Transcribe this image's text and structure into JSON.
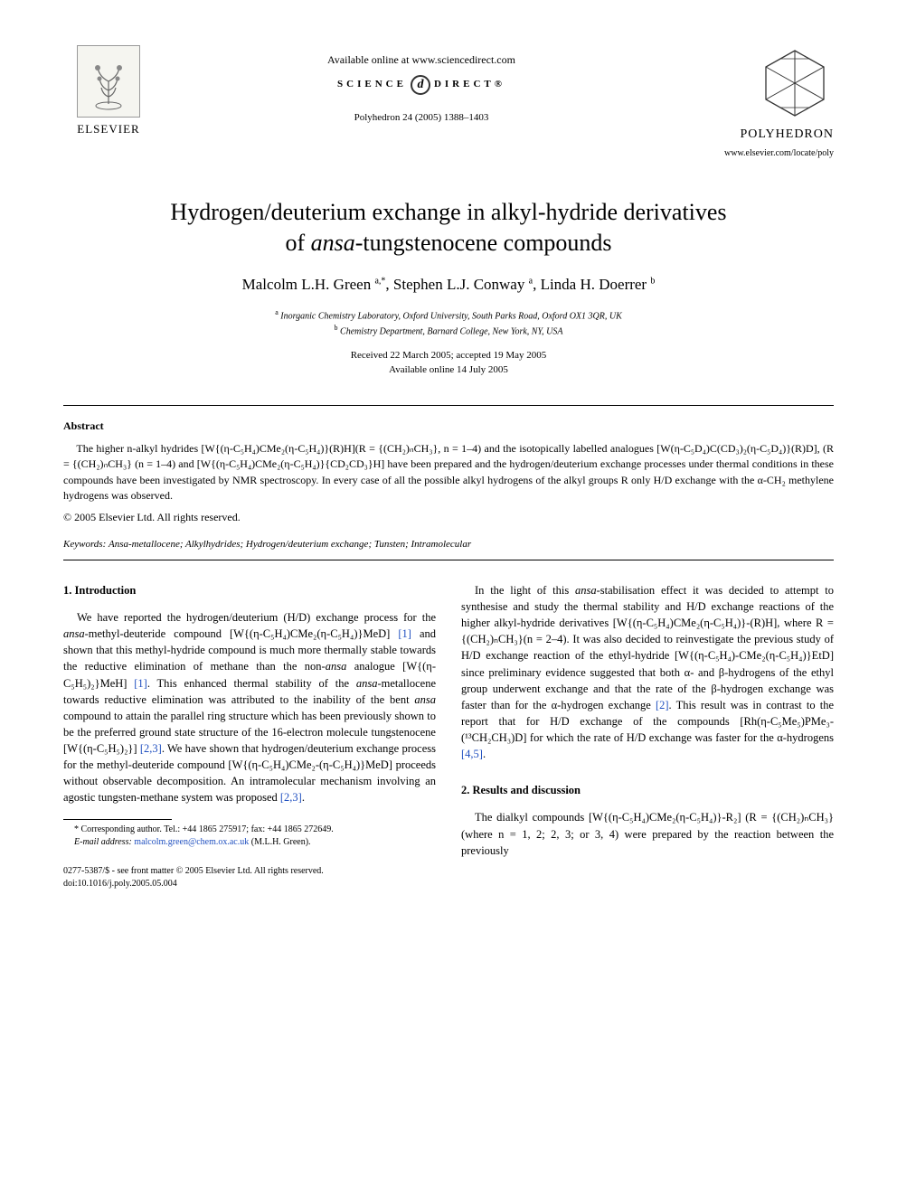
{
  "header": {
    "publisher_name": "ELSEVIER",
    "available_online": "Available online at www.sciencedirect.com",
    "sciencedirect_left": "SCIENCE",
    "sciencedirect_right": "DIRECT®",
    "sciencedirect_glyph": "d",
    "journal_ref": "Polyhedron 24 (2005) 1388–1403",
    "journal_name": "POLYHEDRON",
    "journal_url": "www.elsevier.com/locate/poly"
  },
  "title_line1": "Hydrogen/deuterium exchange in alkyl-hydride derivatives",
  "title_line2_pre": "of ",
  "title_line2_ital": "ansa",
  "title_line2_post": "-tungstenocene compounds",
  "authors_html": "Malcolm L.H. Green <sup>a,*</sup>, Stephen L.J. Conway <sup>a</sup>, Linda H. Doerrer <sup>b</sup>",
  "affiliations": {
    "a": "Inorganic Chemistry Laboratory, Oxford University, South Parks Road, Oxford OX1 3QR, UK",
    "b": "Chemistry Department, Barnard College, New York, NY, USA"
  },
  "dates": {
    "received_accepted": "Received 22 March 2005; accepted 19 May 2005",
    "online": "Available online 14 July 2005"
  },
  "abstract": {
    "heading": "Abstract",
    "text": "The higher n-alkyl hydrides [W{(η-C₅H₄)CMe₂(η-C₅H₄)}(R)H](R = {(CH₂)ₙCH₃}, n = 1–4) and the isotopically labelled analogues [W(η-C₅D₄)C(CD₃)₂(η-C₅D₄)}(R)D], (R = {(CH₂)ₙCH₃} (n = 1–4) and [W{(η-C₅H₄)CMe₂(η-C₅H₄)}{CD₂CD₃}H] have been prepared and the hydrogen/deuterium exchange processes under thermal conditions in these compounds have been investigated by NMR spectroscopy. In every case of all the possible alkyl hydrogens of the alkyl groups R only H/D exchange with the α-CH₂ methylene hydrogens was observed.",
    "copyright": "© 2005 Elsevier Ltd. All rights reserved."
  },
  "keywords": {
    "label": "Keywords:",
    "value": "Ansa-metallocene; Alkylhydrides; Hydrogen/deuterium exchange; Tunsten; Intramolecular"
  },
  "sections": {
    "intro_heading": "1. Introduction",
    "intro_p1": "We have reported the hydrogen/deuterium (H/D) exchange process for the ansa-methyl-deuteride compound [W{(η-C₅H₄)CMe₂(η-C₅H₄)}MeD] [1] and shown that this methyl-hydride compound is much more thermally stable towards the reductive elimination of methane than the non-ansa analogue [W{(η-C₅H₅)₂}MeH] [1]. This enhanced thermal stability of the ansa-metallocene towards reductive elimination was attributed to the inability of the bent ansa compound to attain the parallel ring structure which has been previously shown to be the preferred ground state structure of the 16-electron molecule tungstenocene [W{(η-C₅H₅)₂}] [2,3]. We have shown that hydrogen/deuterium exchange process for the methyl-deuteride compound [W{(η-C₅H₄)CMe₂-(η-C₅H₄)}MeD] proceeds without observable decomposition. An intramolecular mechanism involving an agostic tungsten-methane system was proposed [2,3].",
    "intro_p2": "In the light of this ansa-stabilisation effect it was decided to attempt to synthesise and study the thermal stability and H/D exchange reactions of the higher alkyl-hydride derivatives [W{(η-C₅H₄)CMe₂(η-C₅H₄)}-(R)H], where R = {(CH₂)ₙCH₃}(n = 2–4). It was also decided to reinvestigate the previous study of H/D exchange reaction of the ethyl-hydride [W{(η-C₅H₄)-CMe₂(η-C₅H₄)}EtD] since preliminary evidence suggested that both α- and β-hydrogens of the ethyl group underwent exchange and that the rate of the β-hydrogen exchange was faster than for the α-hydrogen exchange [2]. This result was in contrast to the report that for H/D exchange of the compounds [Rh(η-C₅Me₅)PMe₃-(¹³CH₂CH₃)D] for which the rate of H/D exchange was faster for the α-hydrogens [4,5].",
    "results_heading": "2. Results and discussion",
    "results_p1": "The dialkyl compounds [W{(η-C₅H₄)CMe₂(η-C₅H₄)}-R₂] (R = {(CH₂)ₙCH₃} (where n = 1, 2; 2, 3; or 3, 4) were prepared by the reaction between the previously"
  },
  "footnote": {
    "corresponding": "* Corresponding author. Tel.: +44 1865 275917; fax: +44 1865 272649.",
    "email_label": "E-mail address:",
    "email": "malcolm.green@chem.ox.ac.uk",
    "email_paren": "(M.L.H. Green)."
  },
  "bottom": {
    "issn": "0277-5387/$ - see front matter © 2005 Elsevier Ltd. All rights reserved.",
    "doi": "doi:10.1016/j.poly.2005.05.004"
  },
  "ref_links": [
    "[1]",
    "[1]",
    "[2,3]",
    "[2,3]",
    "[2]",
    "[4,5]"
  ],
  "colors": {
    "text": "#000000",
    "link": "#2050c0",
    "background": "#ffffff"
  },
  "typography": {
    "title_fontsize": 26,
    "body_fontsize": 12.5,
    "abstract_fontsize": 12,
    "author_fontsize": 17,
    "footnote_fontsize": 10,
    "font_family": "Georgia, Times New Roman, serif"
  }
}
